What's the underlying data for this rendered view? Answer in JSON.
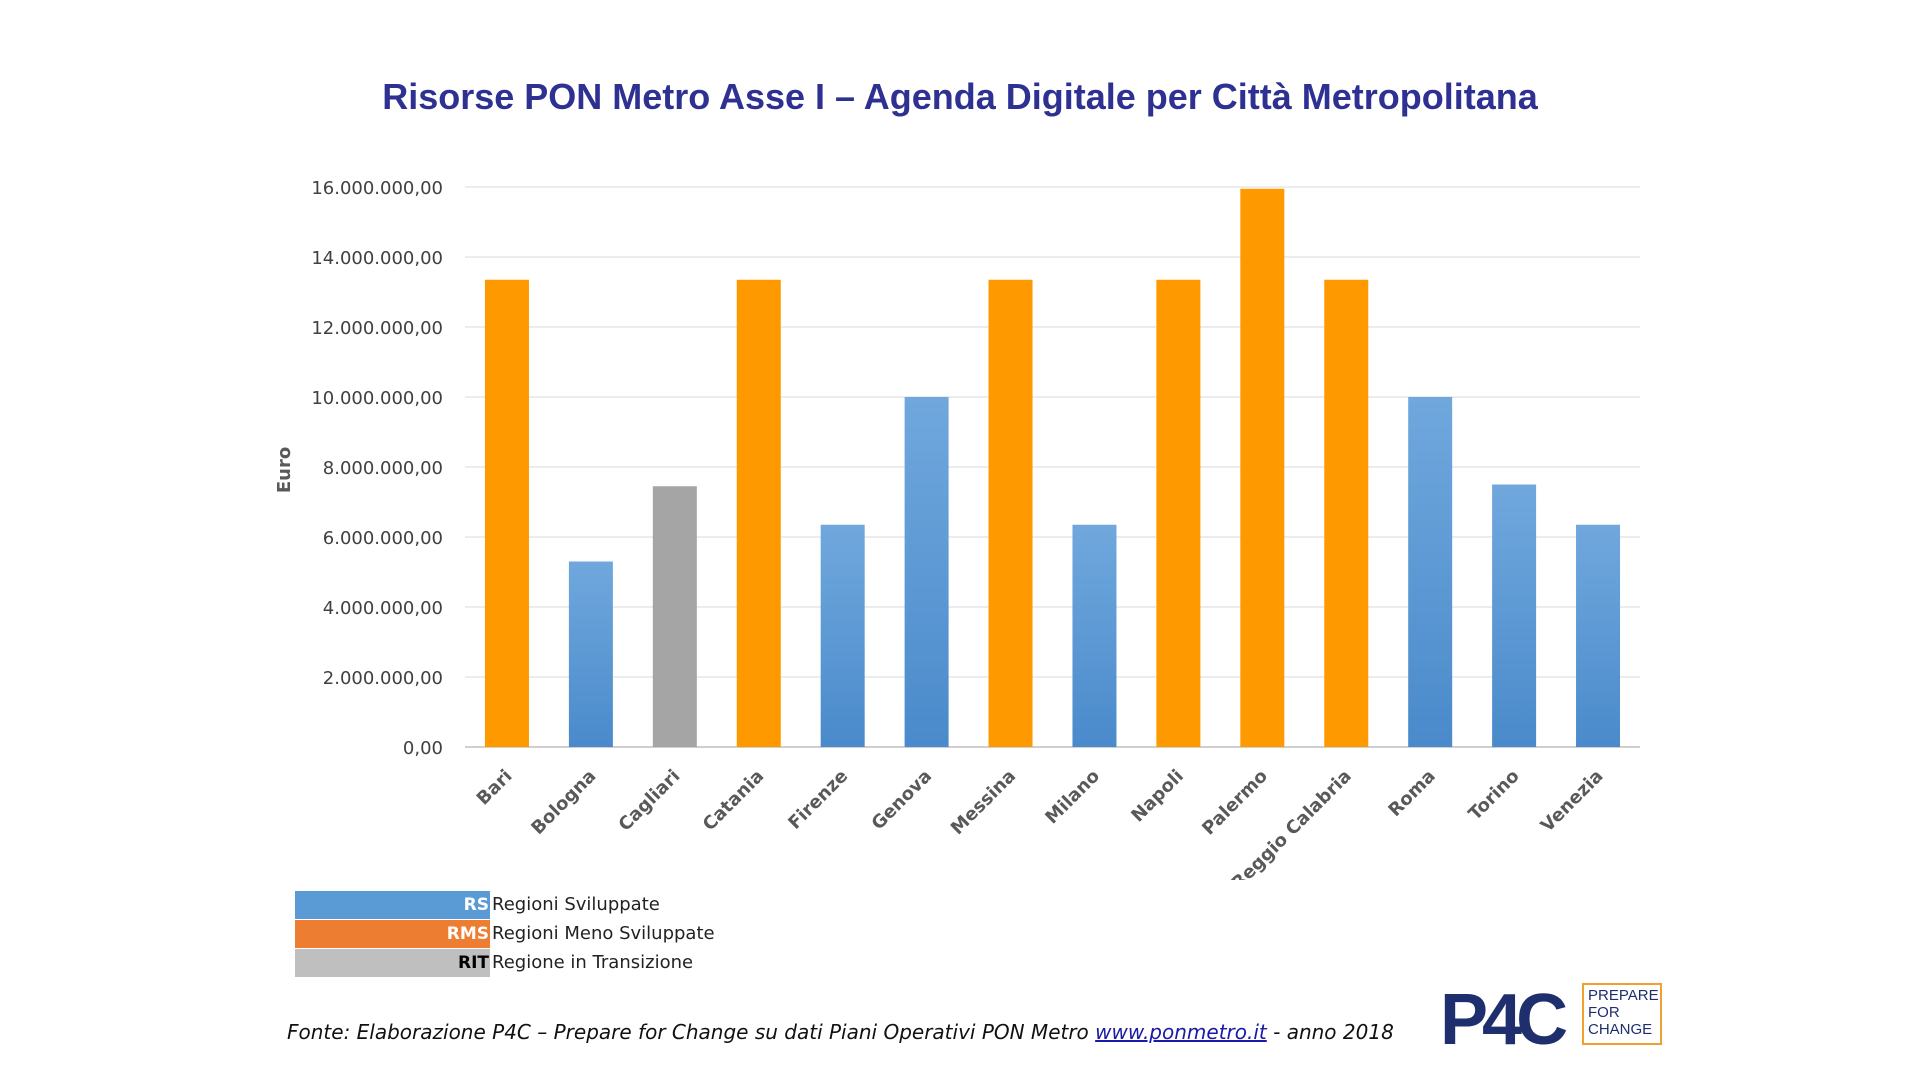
{
  "title": "Risorse PON Metro Asse I – Agenda Digitale per Città Metropolitana",
  "colors": {
    "orange": "#ff9900",
    "blue": "#5b9bd5",
    "gray": "#a5a5a5",
    "title": "#2e3192",
    "legend_rs": "#5b9bd5",
    "legend_rms": "#ed7d31",
    "legend_rit": "#bfbfbf"
  },
  "chart_data": {
    "type": "bar",
    "title": "Risorse PON Metro Asse I – Agenda Digitale per Città Metropolitana",
    "xlabel": "",
    "ylabel": "Euro",
    "ylim": [
      0,
      16000000
    ],
    "grid": true,
    "y_ticks": [
      "0,00",
      "2.000.000,00",
      "4.000.000,00",
      "6.000.000,00",
      "8.000.000,00",
      "10.000.000,00",
      "12.000.000,00",
      "14.000.000,00",
      "16.000.000,00"
    ],
    "y_tick_values": [
      0,
      2000000,
      4000000,
      6000000,
      8000000,
      10000000,
      12000000,
      14000000,
      16000000
    ],
    "categories": [
      "Bari",
      "Bologna",
      "Cagliari",
      "Catania",
      "Firenze",
      "Genova",
      "Messina",
      "Milano",
      "Napoli",
      "Palermo",
      "Reggio Calabria",
      "Roma",
      "Torino",
      "Venezia"
    ],
    "values": [
      13350000,
      5300000,
      7450000,
      13350000,
      6350000,
      10000000,
      13350000,
      6350000,
      13350000,
      15950000,
      13350000,
      10000000,
      7500000,
      6350000
    ],
    "groups": [
      "RMS",
      "RS",
      "RIT",
      "RMS",
      "RS",
      "RS",
      "RMS",
      "RS",
      "RMS",
      "RMS",
      "RMS",
      "RS",
      "RS",
      "RS"
    ]
  },
  "legend": [
    {
      "code": "RS",
      "label": "Regioni Sviluppate",
      "color": "#5b9bd5",
      "text_color": "#ffffff"
    },
    {
      "code": "RMS",
      "label": "Regioni Meno Sviluppate",
      "color": "#ed7d31",
      "text_color": "#ffffff"
    },
    {
      "code": "RIT",
      "label": "Regione in Transizione",
      "color": "#bfbfbf",
      "text_color": "#000000"
    }
  ],
  "source": {
    "prefix": "Fonte: Elaborazione P4C – Prepare for Change su dati Piani Operativi PON Metro ",
    "link": "www.ponmetro.it",
    "suffix": "  - anno 2018"
  },
  "logo": {
    "mark": "P4C",
    "line1": "PREPARE",
    "line2": "FOR",
    "line3": "CHANGE"
  }
}
